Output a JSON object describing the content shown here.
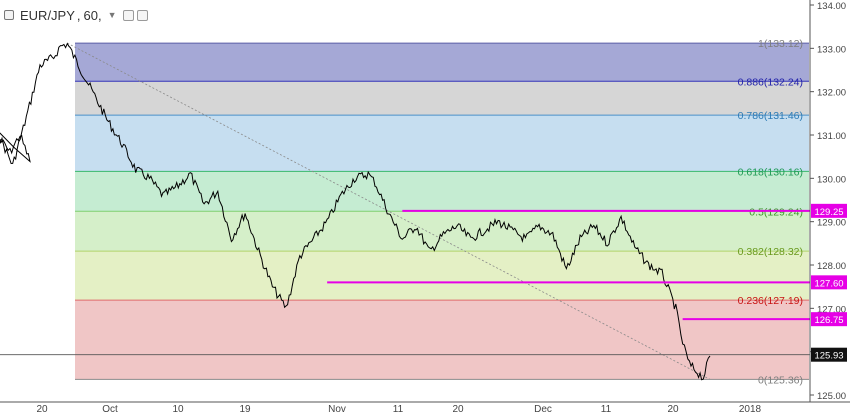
{
  "header": {
    "symbol": "EUR/JPY",
    "interval": "60"
  },
  "chart_data": {
    "type": "line",
    "title": "EUR/JPY, 60",
    "x_tick_labels": [
      "20",
      "Oct",
      "10",
      "19",
      "Nov",
      "11",
      "20",
      "Dec",
      "11",
      "20",
      "2018"
    ],
    "ylim": [
      125.0,
      134.0
    ],
    "y_tick_labels": [
      "125.00",
      "126.00",
      "127.00",
      "128.00",
      "129.00",
      "130.00",
      "131.00",
      "132.00",
      "133.00",
      "134.00"
    ],
    "y_ticks": [
      125,
      126,
      127,
      128,
      129,
      130,
      131,
      132,
      133,
      134
    ],
    "current_price": {
      "label": "125.93",
      "value": 125.93
    },
    "fibonacci": {
      "levels": [
        {
          "label": "1(133.12)",
          "ratio": 1,
          "price": 133.12,
          "line_color": "#5b5ea6",
          "text_color": "#7e7e7e",
          "fill": "#a5a8d6"
        },
        {
          "label": "0.886(132.24)",
          "ratio": 0.886,
          "price": 132.24,
          "line_color": "#3434b8",
          "text_color": "#2323aa",
          "fill": "#d6d6d6"
        },
        {
          "label": "0.786(131.46)",
          "ratio": 0.786,
          "price": 131.46,
          "line_color": "#4a90c8",
          "text_color": "#2e7bb5",
          "fill": "#c6def0"
        },
        {
          "label": "0.618(130.16)",
          "ratio": 0.618,
          "price": 130.16,
          "line_color": "#39b86e",
          "text_color": "#1f9a55",
          "fill": "#c5ecd2"
        },
        {
          "label": "0.5(129.24)",
          "ratio": 0.5,
          "price": 129.24,
          "line_color": "#7fcf70",
          "text_color": "#3c9a2a",
          "fill": "#d5efc9"
        },
        {
          "label": "0.382(128.32)",
          "ratio": 0.382,
          "price": 128.32,
          "line_color": "#b0d36a",
          "text_color": "#6a9a1e",
          "fill": "#e4f0c5"
        },
        {
          "label": "0.236(127.19)",
          "ratio": 0.236,
          "price": 127.19,
          "line_color": "#e06b6b",
          "text_color": "#c81414",
          "fill": "#f0c6c6"
        },
        {
          "label": "0(125.36)",
          "ratio": 0,
          "price": 125.36,
          "line_color": "#8a8a8a",
          "text_color": "#7e7e7e",
          "fill": null
        }
      ],
      "trend_line": {
        "from": {
          "x": "Sep 24",
          "price": 133.12
        },
        "to": {
          "x": "Dec 27",
          "price": 125.36
        }
      }
    },
    "horizontal_lines": [
      {
        "label": "129.25",
        "price": 129.25,
        "color": "#e600e6",
        "from_x": "Nov 12"
      },
      {
        "label": "127.60",
        "price": 127.6,
        "color": "#e600e6",
        "from_x": "Nov 1"
      },
      {
        "label": "126.75",
        "price": 126.75,
        "color": "#e600e6",
        "from_x": "Dec 23"
      }
    ],
    "series": [
      {
        "color": "#000000",
        "x": [
          "Sep 14",
          "Sep 16",
          "Sep 18",
          "Sep 20",
          "Sep 22",
          "Sep 23",
          "Sep 24",
          "Sep 26",
          "Sep 28",
          "Sep 30",
          "Oct 2",
          "Oct 4",
          "Oct 6",
          "Oct 8",
          "Oct 10",
          "Oct 12",
          "Oct 14",
          "Oct 16",
          "Oct 18",
          "Oct 20",
          "Oct 22",
          "Oct 24",
          "Oct 26",
          "Oct 28",
          "Oct 30",
          "Nov 1",
          "Nov 3",
          "Nov 5",
          "Nov 7",
          "Nov 8",
          "Nov 10",
          "Nov 12",
          "Nov 14",
          "Nov 16",
          "Nov 18",
          "Nov 20",
          "Nov 22",
          "Nov 24",
          "Nov 26",
          "Nov 28",
          "Nov 30",
          "Dec 2",
          "Dec 4",
          "Dec 6",
          "Dec 8",
          "Dec 10",
          "Dec 12",
          "Dec 14",
          "Dec 16",
          "Dec 18",
          "Dec 20",
          "Dec 22",
          "Dec 23",
          "Dec 24",
          "Dec 26",
          "Dec 27"
        ],
        "values": [
          131.0,
          130.3,
          131.4,
          132.6,
          132.8,
          133.05,
          133.1,
          132.5,
          131.9,
          131.3,
          130.8,
          130.2,
          130.0,
          129.6,
          129.8,
          130.1,
          129.4,
          129.7,
          128.6,
          129.2,
          128.3,
          127.5,
          127.0,
          128.2,
          128.6,
          129.0,
          129.6,
          130.0,
          130.1,
          129.9,
          129.2,
          128.6,
          128.9,
          128.3,
          128.7,
          128.9,
          128.6,
          128.8,
          129.0,
          128.8,
          128.6,
          128.9,
          128.7,
          127.9,
          128.6,
          128.9,
          128.5,
          129.1,
          128.4,
          128.0,
          127.8,
          127.0,
          126.2,
          125.7,
          125.4,
          125.9
        ]
      }
    ]
  }
}
